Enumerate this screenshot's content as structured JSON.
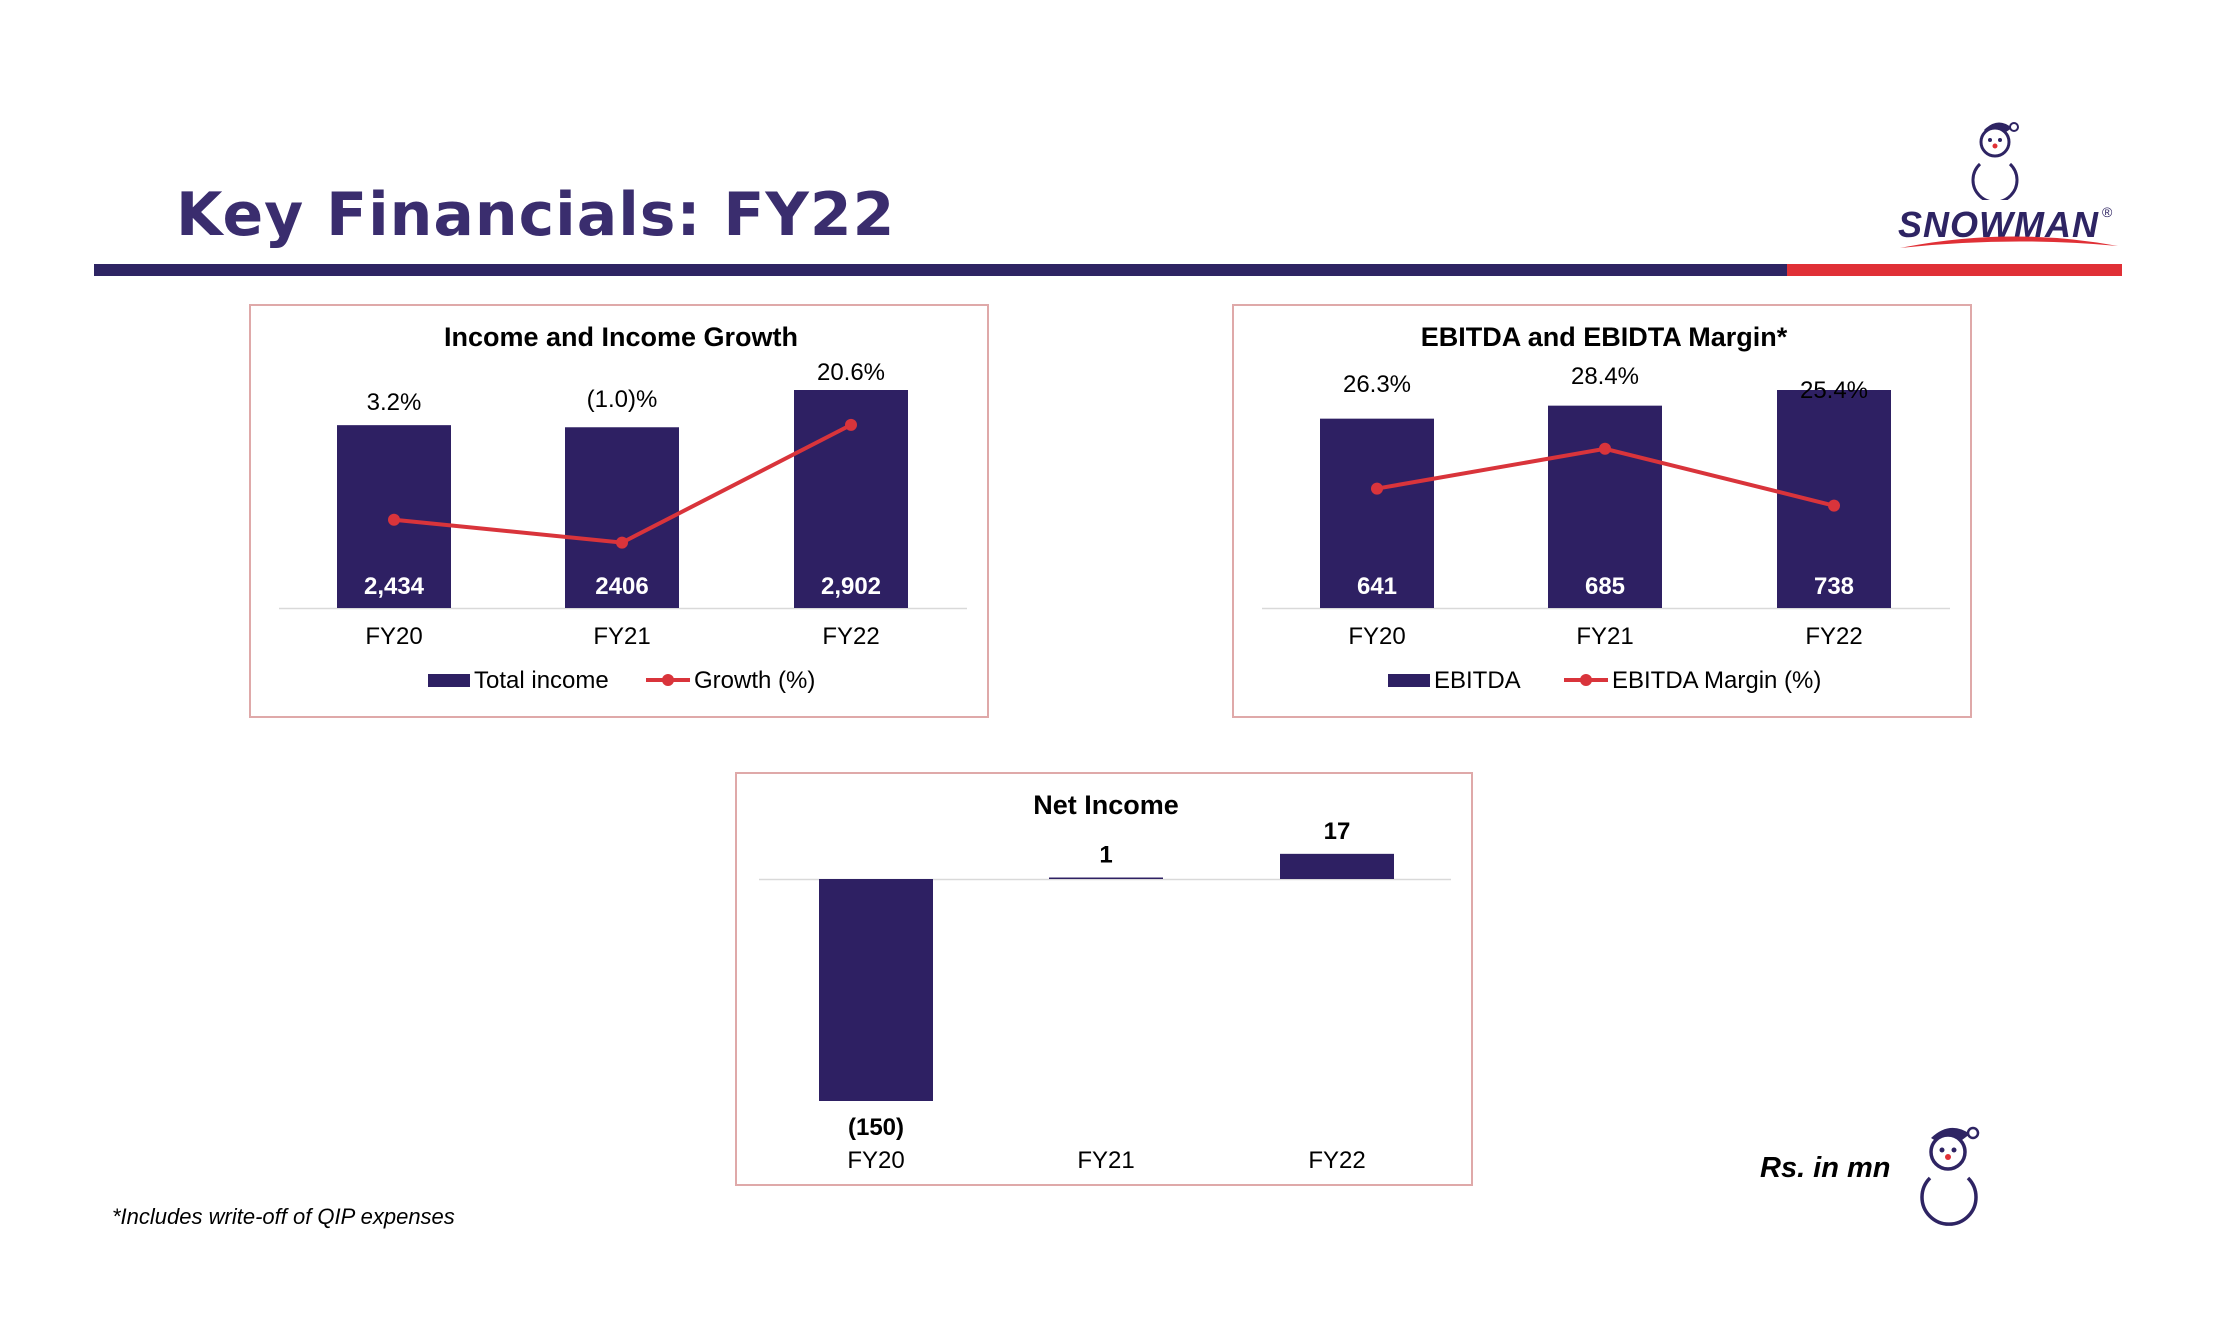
{
  "page": {
    "title": "Key Financials: FY22",
    "footnote": "*Includes write-off of QIP expenses",
    "unit_note": "Rs. in mn"
  },
  "logo": {
    "text": "SNOWMAN",
    "registered": "®"
  },
  "colors": {
    "bar": "#2e2063",
    "line": "#d9343b",
    "title": "#3a2d6e",
    "panel_border": "#dfa9a9",
    "rule_main": "#2e2463",
    "rule_accent": "#e03036"
  },
  "chart_data": [
    {
      "id": "income",
      "type": "bar",
      "title": "Income and Income Growth",
      "categories": [
        "FY20",
        "FY21",
        "FY22"
      ],
      "series": [
        {
          "name": "Total income",
          "type": "bar",
          "values": [
            2434,
            2406,
            2902
          ],
          "labels": [
            "2,434",
            "2406",
            "2,902"
          ]
        },
        {
          "name": "Growth (%)",
          "type": "line",
          "values": [
            3.2,
            -1.0,
            20.6
          ],
          "labels": [
            "3.2%",
            "(1.0)%",
            "20.6%"
          ]
        }
      ],
      "ylim": [
        0,
        2902
      ],
      "y2lim": [
        -13,
        27
      ],
      "legend": "bottom"
    },
    {
      "id": "ebitda",
      "type": "bar",
      "title": "EBITDA and EBIDTA Margin*",
      "categories": [
        "FY20",
        "FY21",
        "FY22"
      ],
      "series": [
        {
          "name": "EBITDA",
          "type": "bar",
          "values": [
            641,
            685,
            738
          ],
          "labels": [
            "641",
            "685",
            "738"
          ]
        },
        {
          "name": "EBITDA Margin (%)",
          "type": "line",
          "values": [
            26.3,
            28.4,
            25.4
          ],
          "labels": [
            "26.3%",
            "28.4%",
            "25.4%"
          ]
        }
      ],
      "ylim": [
        0,
        738
      ],
      "y2lim": [
        20,
        31.5
      ],
      "legend": "bottom"
    },
    {
      "id": "net",
      "type": "bar",
      "title": "Net Income",
      "categories": [
        "FY20",
        "FY21",
        "FY22"
      ],
      "series": [
        {
          "name": "Net Income",
          "type": "bar",
          "values": [
            -150,
            1,
            17
          ],
          "labels": [
            "(150)",
            "1",
            "17"
          ]
        }
      ],
      "ylim": [
        -150,
        17
      ],
      "legend": "none"
    }
  ]
}
